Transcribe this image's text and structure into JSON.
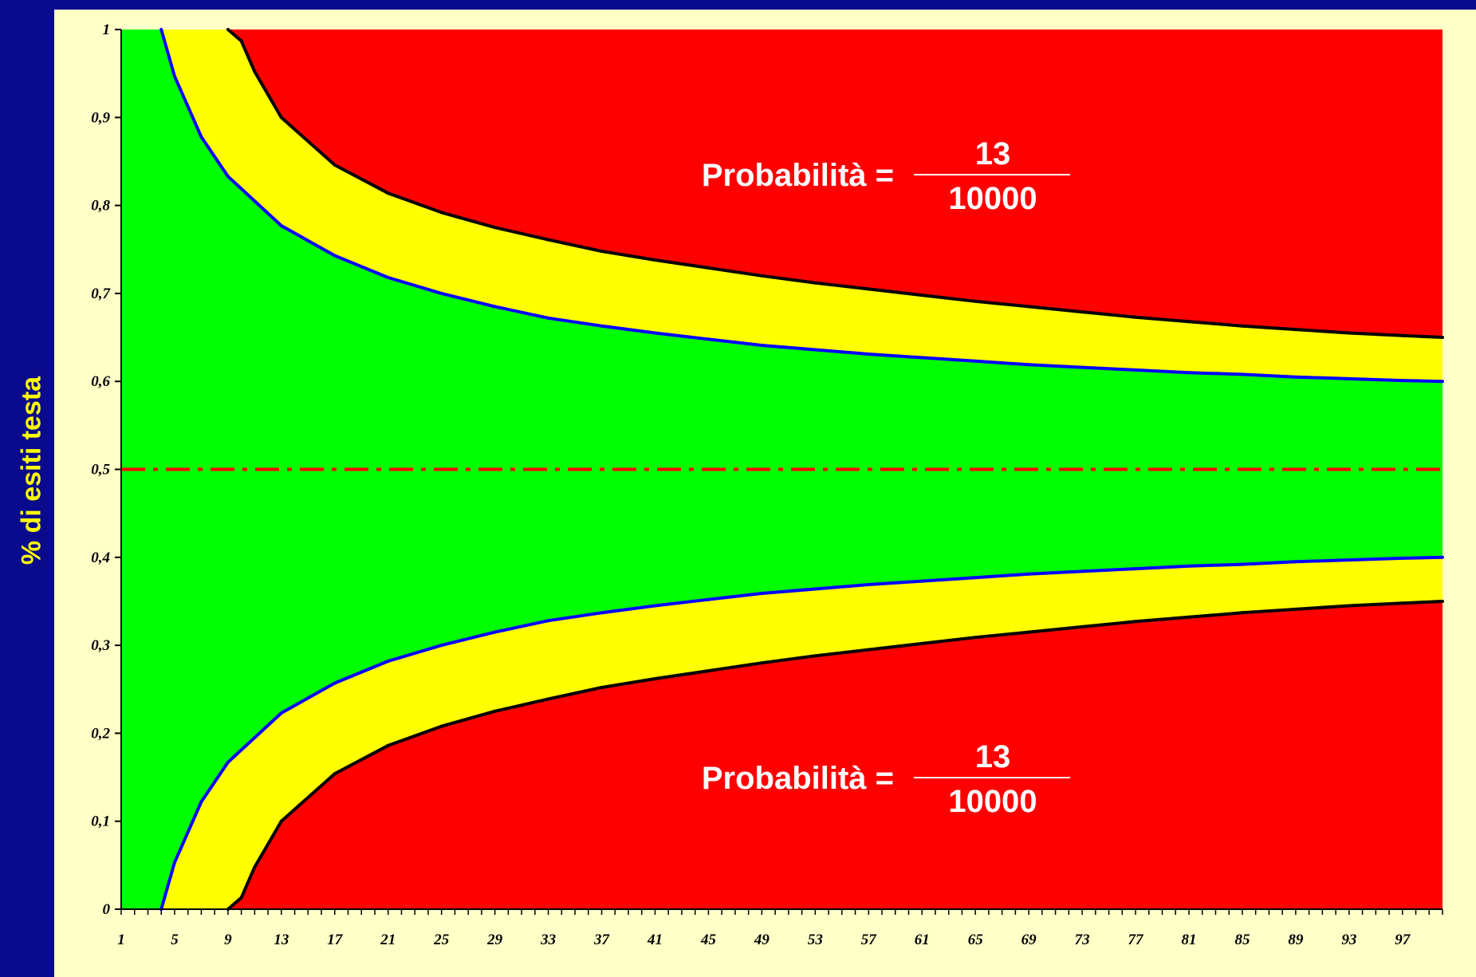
{
  "chart_data": {
    "type": "area",
    "ylabel": "% di esiti testa",
    "xlabel": "",
    "x_range": [
      1,
      100
    ],
    "x_tick_labels": [
      "1",
      "5",
      "9",
      "13",
      "17",
      "21",
      "25",
      "29",
      "33",
      "37",
      "41",
      "45",
      "49",
      "53",
      "57",
      "61",
      "65",
      "69",
      "73",
      "77",
      "81",
      "85",
      "89",
      "93",
      "97"
    ],
    "y_range": [
      0,
      1
    ],
    "y_tick_labels": [
      "0",
      "0,1",
      "0,2",
      "0,3",
      "0,4",
      "0,5",
      "0,6",
      "0,7",
      "0,8",
      "0,9",
      "1"
    ],
    "reference_line": {
      "y": 0.5,
      "style": "dash-dot",
      "color": "#ff0000"
    },
    "series": [
      {
        "boundary": "inner-upper",
        "color": "#0000ff",
        "x": [
          4,
          5,
          7,
          9,
          13,
          17,
          21,
          25,
          29,
          33,
          37,
          41,
          45,
          49,
          53,
          57,
          61,
          65,
          69,
          73,
          77,
          81,
          85,
          89,
          93,
          97,
          100
        ],
        "y": [
          1.0,
          0.947,
          0.878,
          0.833,
          0.777,
          0.743,
          0.718,
          0.7,
          0.685,
          0.672,
          0.663,
          0.655,
          0.648,
          0.641,
          0.636,
          0.631,
          0.627,
          0.623,
          0.619,
          0.616,
          0.613,
          0.61,
          0.608,
          0.605,
          0.603,
          0.601,
          0.6
        ]
      },
      {
        "boundary": "inner-lower",
        "color": "#0000ff",
        "x": [
          4,
          5,
          7,
          9,
          13,
          17,
          21,
          25,
          29,
          33,
          37,
          41,
          45,
          49,
          53,
          57,
          61,
          65,
          69,
          73,
          77,
          81,
          85,
          89,
          93,
          97,
          100
        ],
        "y": [
          0.0,
          0.053,
          0.122,
          0.167,
          0.223,
          0.257,
          0.282,
          0.3,
          0.315,
          0.328,
          0.337,
          0.345,
          0.352,
          0.359,
          0.364,
          0.369,
          0.373,
          0.377,
          0.381,
          0.384,
          0.387,
          0.39,
          0.392,
          0.395,
          0.397,
          0.399,
          0.4
        ]
      },
      {
        "boundary": "outer-upper",
        "color": "#000000",
        "x": [
          9,
          10,
          11,
          13,
          17,
          21,
          25,
          29,
          33,
          37,
          41,
          45,
          49,
          53,
          57,
          61,
          65,
          69,
          73,
          77,
          81,
          85,
          89,
          93,
          97,
          100
        ],
        "y": [
          1.0,
          0.987,
          0.952,
          0.9,
          0.846,
          0.814,
          0.792,
          0.775,
          0.761,
          0.748,
          0.738,
          0.729,
          0.72,
          0.712,
          0.705,
          0.698,
          0.691,
          0.685,
          0.679,
          0.673,
          0.668,
          0.663,
          0.659,
          0.655,
          0.652,
          0.65
        ]
      },
      {
        "boundary": "outer-lower",
        "color": "#000000",
        "x": [
          9,
          10,
          11,
          13,
          17,
          21,
          25,
          29,
          33,
          37,
          41,
          45,
          49,
          53,
          57,
          61,
          65,
          69,
          73,
          77,
          81,
          85,
          89,
          93,
          97,
          100
        ],
        "y": [
          0.0,
          0.013,
          0.048,
          0.1,
          0.154,
          0.186,
          0.208,
          0.225,
          0.239,
          0.252,
          0.262,
          0.271,
          0.28,
          0.288,
          0.295,
          0.302,
          0.309,
          0.315,
          0.321,
          0.327,
          0.332,
          0.337,
          0.341,
          0.345,
          0.348,
          0.35
        ]
      }
    ],
    "region_colors": {
      "inner": "#00ff00",
      "middle": "#ffff00",
      "outer": "#ff0000"
    },
    "annotations": [
      {
        "position": "top",
        "prefix": "Probabilità =",
        "numerator": "13",
        "denominator": "10000"
      },
      {
        "position": "bottom",
        "prefix": "Probabilità =",
        "numerator": "13",
        "denominator": "10000"
      }
    ],
    "grid": false,
    "legend": "none"
  }
}
